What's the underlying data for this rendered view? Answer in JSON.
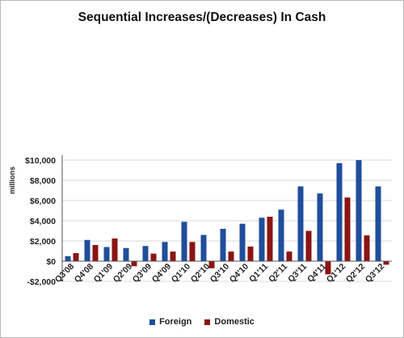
{
  "chart_data": {
    "type": "bar",
    "title": "Sequential Increases/(Decreases) In Cash",
    "xlabel": "",
    "ylabel": "millions",
    "ylim": [
      -2000,
      10500
    ],
    "yticks": [
      -2000,
      0,
      2000,
      4000,
      6000,
      8000,
      10000
    ],
    "ytick_labels": [
      "-$2,000",
      "$0",
      "$2,000",
      "$4,000",
      "$6,000",
      "$8,000",
      "$10,000"
    ],
    "categories": [
      "Q3'08",
      "Q4'08",
      "Q1'09",
      "Q2'09",
      "Q3'09",
      "Q4'09",
      "Q1'10",
      "Q2'10",
      "Q3'10",
      "Q4'10",
      "Q1'11",
      "Q2'11",
      "Q3'11",
      "Q4'11",
      "Q1'12",
      "Q2'12",
      "Q3'12"
    ],
    "series": [
      {
        "name": "Foreign",
        "color": "#1f4e9c",
        "values": [
          500,
          2100,
          1400,
          1300,
          1500,
          1900,
          3900,
          2600,
          3200,
          3700,
          4300,
          5100,
          7400,
          6700,
          9700,
          10000,
          7400
        ]
      },
      {
        "name": "Domestic",
        "color": "#8b1414",
        "values": [
          800,
          1600,
          2250,
          -500,
          750,
          950,
          1900,
          -700,
          950,
          1450,
          4400,
          950,
          3000,
          -1300,
          6300,
          2550,
          -350
        ]
      }
    ],
    "grid": true,
    "legend": "bottom"
  }
}
